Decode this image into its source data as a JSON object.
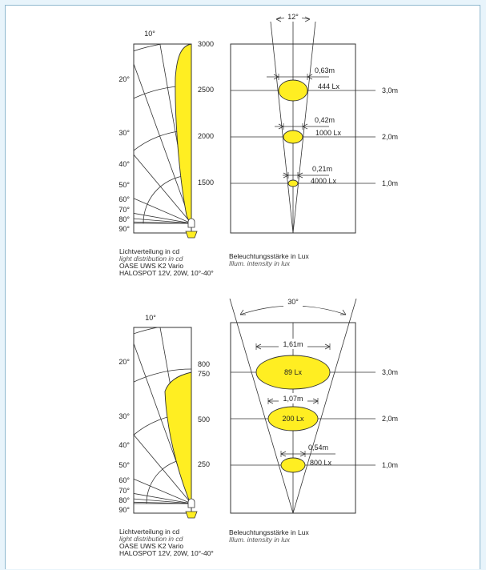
{
  "colors": {
    "fill": "#ffee22",
    "line": "#333333",
    "background": "#e8f4fb"
  },
  "diagrams": [
    {
      "polar": {
        "top_angle": "10°",
        "angle_labels": [
          "20°",
          "30°",
          "40°",
          "50°",
          "60°",
          "70°",
          "80°",
          "90°"
        ],
        "intensity_labels": [
          "3000",
          "2500",
          "2000",
          "1500"
        ]
      },
      "beam": {
        "angle_label": "12°",
        "rows": [
          {
            "diameter": "0,63m",
            "lux": "444 Lx",
            "distance": "3,0m"
          },
          {
            "diameter": "0,42m",
            "lux": "1000 Lx",
            "distance": "2,0m"
          },
          {
            "diameter": "0,21m",
            "lux": "4000 Lx",
            "distance": "1,0m"
          }
        ]
      },
      "caption_left": {
        "line1": "Lichtverteilung in cd",
        "line2": "light distribution in cd",
        "line3": "OASE UWS K2 Vario",
        "line4": "HALOSPOT 12V, 20W, 10°-40°"
      },
      "caption_right": {
        "line1": "Beleuchtungsstärke in Lux",
        "line2": "Illum. intensity in lux"
      }
    },
    {
      "polar": {
        "top_angle": "10°",
        "angle_labels": [
          "20°",
          "30°",
          "40°",
          "50°",
          "60°",
          "70°",
          "80°",
          "90°"
        ],
        "intensity_labels": [
          "800",
          "750",
          "500",
          "250"
        ]
      },
      "beam": {
        "angle_label": "30°",
        "rows": [
          {
            "diameter": "1,61m",
            "lux": "89 Lx",
            "distance": "3,0m"
          },
          {
            "diameter": "1,07m",
            "lux": "200 Lx",
            "distance": "2,0m"
          },
          {
            "diameter": "0,54m",
            "lux": "800 Lx",
            "distance": "1,0m"
          }
        ]
      },
      "caption_left": {
        "line1": "Lichtverteilung in cd",
        "line2": "light distribution in cd",
        "line3": "OASE UWS K2 Vario",
        "line4": "HALOSPOT 12V, 20W, 10°-40°"
      },
      "caption_right": {
        "line1": "Beleuchtungsstärke in Lux",
        "line2": "Illum. intensity in lux"
      }
    }
  ]
}
